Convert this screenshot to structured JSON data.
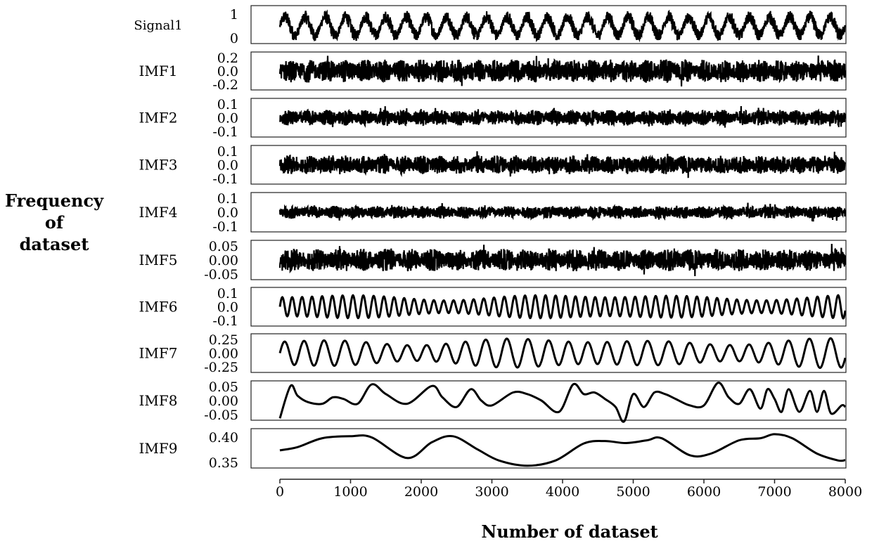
{
  "chart_data": {
    "type": "line",
    "ylabel_lines": [
      "Frequency",
      "of",
      "dataset"
    ],
    "xlabel": "Number of dataset",
    "xlim": [
      0,
      8000
    ],
    "xticks": [
      0,
      1000,
      2000,
      3000,
      4000,
      5000,
      6000,
      7000,
      8000
    ],
    "panels": [
      {
        "name": "Signal1",
        "ylim": [
          0,
          1
        ],
        "yticks": [
          "1",
          "0"
        ],
        "kind": "noise",
        "center": 0.45,
        "amplitude": 0.5,
        "cycles": 28
      },
      {
        "name": "IMF1",
        "ylim": [
          -0.2,
          0.2
        ],
        "yticks": [
          "0.2",
          "0.0",
          "-0.2"
        ],
        "kind": "noise",
        "center": 0,
        "amplitude": 0.15,
        "cycles": 30
      },
      {
        "name": "IMF2",
        "ylim": [
          -0.1,
          0.1
        ],
        "yticks": [
          "0.1",
          "0.0",
          "-0.1"
        ],
        "kind": "noise",
        "center": 0,
        "amplitude": 0.05,
        "cycles": 30
      },
      {
        "name": "IMF3",
        "ylim": [
          -0.1,
          0.1
        ],
        "yticks": [
          "0.1",
          "0.0",
          "-0.1"
        ],
        "kind": "noise",
        "center": 0,
        "amplitude": 0.06,
        "cycles": 30
      },
      {
        "name": "IMF4",
        "ylim": [
          -0.1,
          0.1
        ],
        "yticks": [
          "0.1",
          "0.0",
          "-0.1"
        ],
        "kind": "noise",
        "center": 0,
        "amplitude": 0.04,
        "cycles": 26
      },
      {
        "name": "IMF5",
        "ylim": [
          -0.05,
          0.05
        ],
        "yticks": [
          "0.05",
          "0.00",
          "-0.05"
        ],
        "kind": "noise",
        "center": 0,
        "amplitude": 0.035,
        "cycles": 24
      },
      {
        "name": "IMF6",
        "ylim": [
          -0.1,
          0.1
        ],
        "yticks": [
          "0.1",
          "0.0",
          "-0.1"
        ],
        "kind": "osc",
        "center": 0,
        "amplitude": 0.08,
        "cycles": 56
      },
      {
        "name": "IMF7",
        "ylim": [
          -0.25,
          0.25
        ],
        "yticks": [
          "0.25",
          "0.00",
          "-0.25"
        ],
        "kind": "osc",
        "center": 0,
        "amplitude": 0.24,
        "cycles": 28
      },
      {
        "name": "IMF8",
        "ylim": [
          -0.05,
          0.05
        ],
        "yticks": [
          "0.05",
          "0.00",
          "-0.05"
        ],
        "kind": "points",
        "x": [
          0,
          150,
          250,
          400,
          600,
          750,
          900,
          1100,
          1300,
          1500,
          1800,
          2150,
          2300,
          2500,
          2700,
          2850,
          3000,
          3300,
          3500,
          3700,
          3950,
          4150,
          4300,
          4450,
          4600,
          4750,
          4870,
          5000,
          5150,
          5300,
          5450,
          5600,
          5800,
          6000,
          6200,
          6350,
          6500,
          6650,
          6800,
          6900,
          7000,
          7100,
          7200,
          7350,
          7500,
          7600,
          7700,
          7800,
          7950,
          8000
        ],
        "y": [
          -0.055,
          0.045,
          0.015,
          -0.005,
          -0.01,
          0.01,
          0.005,
          -0.01,
          0.05,
          0.02,
          -0.01,
          0.045,
          0.01,
          -0.02,
          0.035,
          0.0,
          -0.015,
          0.025,
          0.02,
          0.0,
          -0.035,
          0.05,
          0.02,
          0.025,
          0.005,
          -0.02,
          -0.065,
          0.02,
          -0.02,
          0.025,
          0.02,
          0.005,
          -0.015,
          -0.015,
          0.055,
          0.01,
          -0.01,
          0.035,
          -0.025,
          0.035,
          0.005,
          -0.035,
          0.035,
          -0.035,
          0.03,
          -0.035,
          0.03,
          -0.04,
          -0.015,
          -0.02
        ]
      },
      {
        "name": "IMF9",
        "ylim": [
          0.345,
          0.425
        ],
        "yticks": [
          "0.40",
          "0.35"
        ],
        "kind": "points",
        "x": [
          0,
          250,
          600,
          1000,
          1300,
          1800,
          2150,
          2450,
          2800,
          3100,
          3500,
          3900,
          4300,
          4600,
          4900,
          5200,
          5400,
          5800,
          6100,
          6500,
          6800,
          7000,
          7250,
          7600,
          7900,
          8000
        ],
        "y": [
          0.38,
          0.388,
          0.41,
          0.415,
          0.412,
          0.361,
          0.4,
          0.415,
          0.382,
          0.355,
          0.342,
          0.355,
          0.397,
          0.403,
          0.398,
          0.405,
          0.41,
          0.368,
          0.372,
          0.405,
          0.41,
          0.42,
          0.41,
          0.372,
          0.355,
          0.356
        ]
      }
    ]
  }
}
